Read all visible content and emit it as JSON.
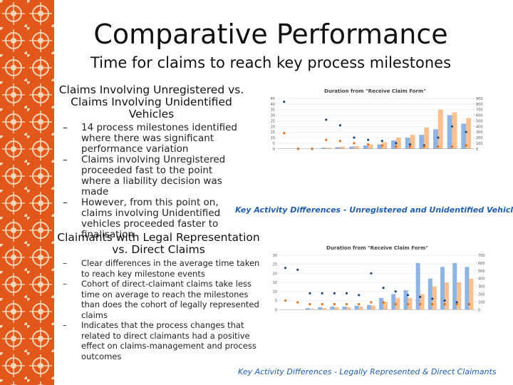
{
  "slide": {
    "title": "Comparative Performance",
    "subtitle": "Time for claims to reach key process milestones",
    "section1": {
      "heading": "Claims Involving Unregistered vs. Claims Involving Unidentified Vehicles",
      "bullets": [
        "14 process milestones identified where there was significant performance variation",
        "Claims involving Unregistered proceeded fast to the point where a liability decision was made",
        "However, from this point on, claims involving Unidentified vehicles proceeded faster to finalisation"
      ],
      "caption": "Key Activity Differences - Unregistered and Unidentified Vehicles"
    },
    "section2": {
      "heading": "Claimants with Legal Representation vs. Direct Claims",
      "bullets": [
        "Clear differences in the average time taken to reach key milestone events",
        "Cohort of direct-claimant claims take less time on average to reach the milestones than does the cohort of legally represented claims",
        "Indicates that the process changes that related to direct claimants had a positive effect on claims-management and process outcomes"
      ],
      "caption": "Key Activity Differences - Legally Represented & Direct Claimants"
    }
  },
  "chart_data": [
    {
      "type": "bar",
      "title": "Duration from \"Receive Claim Form\"",
      "ylim": [
        0,
        45
      ],
      "yticks": [
        0,
        5,
        10,
        15,
        20,
        25,
        30,
        35,
        40,
        45
      ],
      "y2lim": [
        0,
        900
      ],
      "y2ticks": [
        0,
        100,
        200,
        300,
        400,
        500,
        600,
        700,
        800,
        900
      ],
      "series": [
        {
          "color": "#8eb4e3",
          "axis": "y2",
          "values": [
            0,
            0,
            0,
            20,
            30,
            40,
            60,
            80,
            150,
            200,
            250,
            350,
            600,
            450
          ]
        },
        {
          "color": "#fac090",
          "axis": "y2",
          "values": [
            0,
            0,
            0,
            20,
            40,
            50,
            80,
            120,
            200,
            250,
            380,
            700,
            650,
            550
          ]
        },
        {
          "color": "#1f497d",
          "values": [
            42,
            0,
            0,
            26,
            21,
            10,
            8,
            7,
            5,
            4,
            3,
            10,
            20,
            15
          ]
        },
        {
          "color": "#e46c0a",
          "values": [
            14,
            0,
            0,
            8,
            7,
            5,
            4,
            3,
            2,
            2,
            2,
            2,
            2,
            3
          ]
        }
      ]
    },
    {
      "type": "bar",
      "title": "Duration from \"Receive Claim Form\"",
      "ylim": [
        0,
        30
      ],
      "yticks": [
        0,
        5,
        10,
        15,
        20,
        25,
        30
      ],
      "y2lim": [
        0,
        700
      ],
      "y2ticks": [
        0,
        100,
        200,
        300,
        400,
        500,
        600,
        700
      ],
      "series": [
        {
          "color": "#8eb4e3",
          "axis": "y2",
          "values": [
            0,
            0,
            20,
            30,
            40,
            40,
            50,
            60,
            150,
            200,
            250,
            600,
            400,
            550,
            600,
            550
          ]
        },
        {
          "color": "#fac090",
          "axis": "y2",
          "values": [
            0,
            0,
            10,
            20,
            30,
            30,
            40,
            50,
            100,
            150,
            150,
            200,
            300,
            350,
            350,
            400
          ]
        },
        {
          "color": "#1f497d",
          "values": [
            23,
            22,
            9,
            9,
            9,
            9,
            8,
            20,
            12,
            10,
            8,
            7,
            6,
            5,
            4,
            3
          ]
        },
        {
          "color": "#e46c0a",
          "values": [
            5,
            4,
            3,
            3,
            3,
            3,
            3,
            4,
            4,
            3,
            3,
            3,
            3,
            3,
            3,
            3
          ]
        }
      ]
    }
  ]
}
